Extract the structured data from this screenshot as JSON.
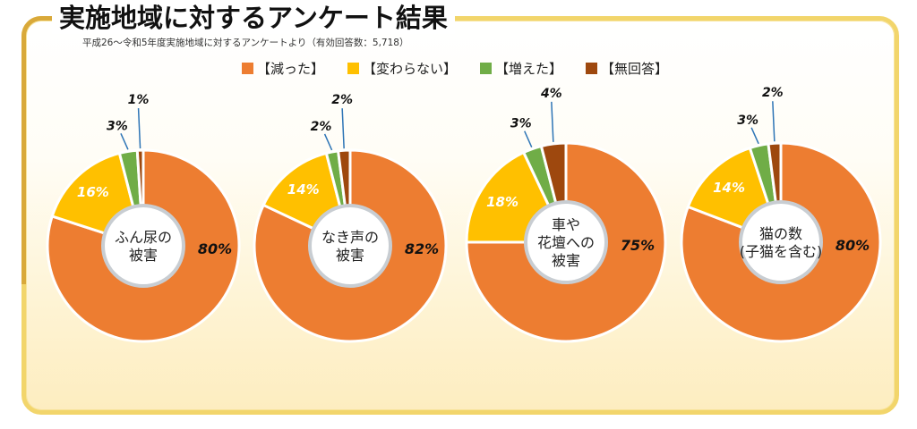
{
  "header": {
    "title": "実施地域に対するアンケート結果",
    "subtitle": "平成26～令和5年度実施地域に対するアンケートより（有効回答数：5,718）"
  },
  "colors": {
    "decreased": "#ed7d31",
    "unchanged": "#ffc000",
    "increased": "#70ad47",
    "no_answer": "#9e480e",
    "leader": "#2e75b6",
    "frame": "#f2d56b"
  },
  "chart_data": {
    "type": "pie",
    "title": "実施地域に対するアンケート結果",
    "subtitle": "平成26～令和5年度実施地域に対するアンケートより（有効回答数：5,718）",
    "legend_position": "top",
    "legend": [
      {
        "key": "decreased",
        "label": "【減った】"
      },
      {
        "key": "unchanged",
        "label": "【変わらない】"
      },
      {
        "key": "increased",
        "label": "【増えた】"
      },
      {
        "key": "no_answer",
        "label": "【無回答】"
      }
    ],
    "charts": [
      {
        "center_label": [
          "ふん尿の",
          "被害"
        ],
        "values": {
          "decreased": 80,
          "unchanged": 16,
          "increased": 3,
          "no_answer": 1
        },
        "labels": {
          "decreased": "80%",
          "unchanged": "16%",
          "increased": "3%",
          "no_answer": "1%"
        }
      },
      {
        "center_label": [
          "なき声の",
          "被害"
        ],
        "values": {
          "decreased": 82,
          "unchanged": 14,
          "increased": 2,
          "no_answer": 2
        },
        "labels": {
          "decreased": "82%",
          "unchanged": "14%",
          "increased": "2%",
          "no_answer": "2%"
        }
      },
      {
        "center_label": [
          "車や",
          "花壇への",
          "被害"
        ],
        "values": {
          "decreased": 75,
          "unchanged": 18,
          "increased": 3,
          "no_answer": 4
        },
        "labels": {
          "decreased": "75%",
          "unchanged": "18%",
          "increased": "3%",
          "no_answer": "4%"
        }
      },
      {
        "center_label": [
          "猫の数",
          "(子猫を含む)"
        ],
        "values": {
          "decreased": 80,
          "unchanged": 14,
          "increased": 3,
          "no_answer": 2
        },
        "labels": {
          "decreased": "80%",
          "unchanged": "14%",
          "increased": "3%",
          "no_answer": "2%"
        }
      }
    ]
  }
}
